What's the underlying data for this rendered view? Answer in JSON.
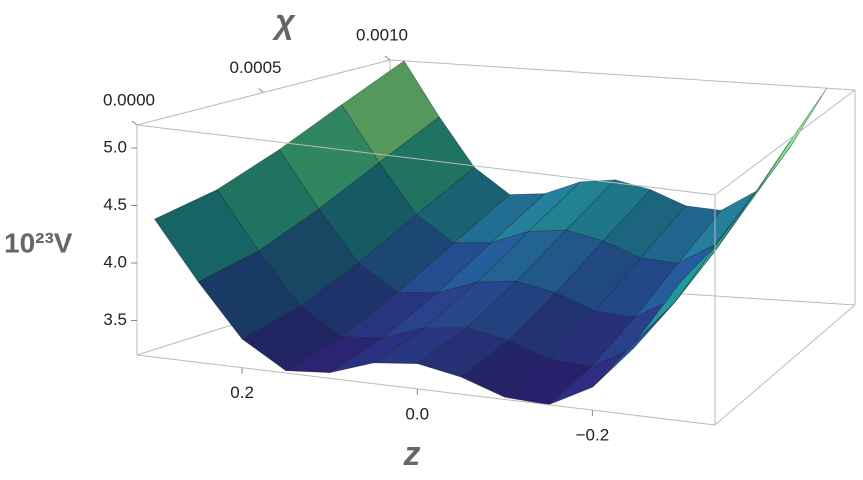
{
  "chart_data": {
    "type": "surface",
    "z_label": "z",
    "chi_label": "χ",
    "v_label": "10²³V",
    "z": [
      0.3,
      0.25,
      0.2,
      0.15,
      0.1,
      0.05,
      0,
      -0.05,
      -0.1,
      -0.15,
      -0.2,
      -0.25,
      -0.3
    ],
    "chi": [
      0,
      0.00025,
      0.0005,
      0.00075,
      0.001
    ],
    "values": [
      [
        4.4,
        3.9,
        3.45,
        3.22,
        3.25,
        3.38,
        3.42,
        3.35,
        3.22,
        3.2,
        3.4,
        3.85,
        4.4
      ],
      [
        4.5,
        4.0,
        3.55,
        3.32,
        3.35,
        3.48,
        3.52,
        3.45,
        3.32,
        3.3,
        3.5,
        3.95,
        4.5
      ],
      [
        4.7,
        4.2,
        3.75,
        3.52,
        3.55,
        3.68,
        3.72,
        3.65,
        3.52,
        3.5,
        3.7,
        4.15,
        4.7
      ],
      [
        4.95,
        4.45,
        4.0,
        3.77,
        3.8,
        3.93,
        3.97,
        3.9,
        3.77,
        3.75,
        3.95,
        4.4,
        4.95
      ],
      [
        5.2,
        4.7,
        4.25,
        4.02,
        4.05,
        4.18,
        4.22,
        4.15,
        4.02,
        4.0,
        4.2,
        4.65,
        5.2
      ]
    ],
    "zlim": [
      0.32,
      -0.34
    ],
    "zticks": [
      0.2,
      {
        "value": 0,
        "label": "0.0"
      },
      {
        "value": -0.2,
        "label": "−0.2"
      }
    ],
    "chilim": [
      0,
      0.001
    ],
    "chiticks": [
      {
        "value": 0,
        "label": "0.0000"
      },
      {
        "value": 0.0005,
        "label": "0.0005"
      },
      {
        "value": 0.001,
        "label": "0.0010"
      }
    ],
    "vlim": [
      3.2,
      5.2
    ],
    "vticks": [
      3.5,
      {
        "value": 4,
        "label": "4.0"
      },
      4.5,
      {
        "value": 5,
        "label": "5.0"
      }
    ],
    "colormap": [
      "#2b1a6a",
      "#23508f",
      "#1f8f8d",
      "#52cf84",
      "#f2f67a"
    ]
  }
}
